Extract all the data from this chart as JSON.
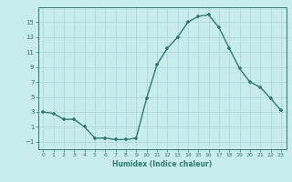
{
  "x": [
    0,
    1,
    2,
    3,
    4,
    5,
    6,
    7,
    8,
    9,
    10,
    11,
    12,
    13,
    14,
    15,
    16,
    17,
    18,
    19,
    20,
    21,
    22,
    23
  ],
  "y": [
    3,
    2.8,
    2,
    2,
    1,
    -0.5,
    -0.5,
    -0.7,
    -0.7,
    -0.5,
    4.8,
    9.3,
    11.5,
    13,
    15,
    15.8,
    16,
    14.3,
    11.5,
    8.8,
    7,
    6.3,
    4.8,
    3.2
  ],
  "line_color": "#2d7d6e",
  "marker_color": "#2d7d6e",
  "bg_color": "#c8ecec",
  "grid_color": "#b0d8d8",
  "xlabel": "Humidex (Indice chaleur)",
  "xlim": [
    -0.5,
    23.5
  ],
  "ylim": [
    -2,
    17
  ],
  "yticks": [
    -1,
    1,
    3,
    5,
    7,
    9,
    11,
    13,
    15
  ],
  "xticks": [
    0,
    1,
    2,
    3,
    4,
    5,
    6,
    7,
    8,
    9,
    10,
    11,
    12,
    13,
    14,
    15,
    16,
    17,
    18,
    19,
    20,
    21,
    22,
    23
  ]
}
